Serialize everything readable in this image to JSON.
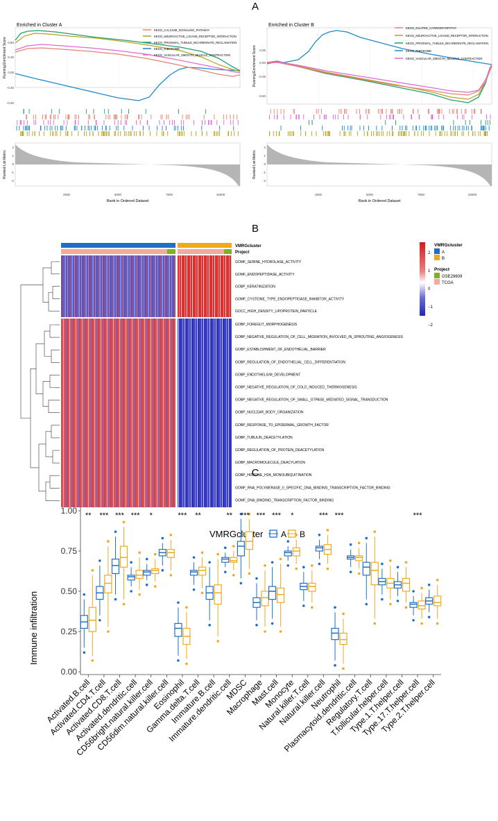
{
  "panel_labels": {
    "a": "A",
    "b": "B",
    "c": "C"
  },
  "colors": {
    "calcium": "#e8806f",
    "neuro": "#b5a11d",
    "proximal": "#1f9e6e",
    "ribosome": "#1e88c8",
    "vascular": "#e066d6",
    "dilated": "#e8806f",
    "heat_high": "#d7191c",
    "heat_low": "#2225b3",
    "cluster_a": "#1e6fc8",
    "cluster_b": "#f0a91a",
    "project_gse": "#7fb21e",
    "project_tcga": "#f4a8a0"
  },
  "gsea_a": {
    "title": "Enriched in Cluster A",
    "ylabel_top": "Running Enrichment Score",
    "ylabel_bottom": "Ranked List Metric",
    "xlabel": "Rank in Ordered Dataset",
    "yticks_top": [
      "0.50",
      "0.25",
      "0.00",
      "-0.25",
      "-0.50"
    ],
    "yticks_bottom": [
      "2",
      "1",
      "0",
      "-1",
      "-2"
    ],
    "xticks": [
      "2500",
      "5000",
      "7500",
      "10000"
    ],
    "legend": [
      "KEGG_CALCIUM_SIGNALING_PATHWAY",
      "KEGG_NEUROACTIVE_LIGAND_RECEPTOR_INTERACTION",
      "KEGG_PROXIMAL_TUBULE_BICARBONATE_RECLAMATION",
      "KEGG_RIBOSOME",
      "KEGG_VASCULAR_SMOOTH_MUSCLE_CONTRACTION"
    ]
  },
  "gsea_b": {
    "title": "Enriched in Cluster B",
    "ylabel_top": "Running Enrichment Score",
    "ylabel_bottom": "Ranked List Metric",
    "xlabel": "Rank in Ordered Dataset",
    "yticks_top": [
      "0.25",
      "0.00",
      "-0.25",
      "-0.50"
    ],
    "yticks_bottom": [
      "2",
      "1",
      "0",
      "-1",
      "-2"
    ],
    "xticks": [
      "2500",
      "5000",
      "7500",
      "10000"
    ],
    "legend": [
      "KEGG_DILATED_CARDIOMYOPATHY",
      "KEGG_NEUROACTIVE_LIGAND_RECEPTOR_INTERACTION",
      "KEGG_PROXIMAL_TUBULE_BICARBONATE_RECLAMATION",
      "KEGG_RIBOSOME",
      "KEGG_VASCULAR_SMOOTH_MUSCLE_CONTRACTION"
    ]
  },
  "heatmap": {
    "annotation_labels": [
      "VMRGcluster",
      "Project"
    ],
    "rows": [
      "GOMF_SERINE_HYDROLASE_ACTIVITY",
      "GOMF_ENDOPEPTIDASE_ACTIVITY",
      "GOBP_KERATINIZATION",
      "GOMF_CYSTEINE_TYPE_ENDOPEPTIDASE_INHIBITOR_ACTIVITY",
      "GOCC_HIGH_DENSITY_LIPOPROTEIN_PARTICLE",
      "GOBP_FOREGUT_MORPHOGENESIS",
      "GOBP_NEGATIVE_REGULATION_OF_CELL_MIGRATION_INVOLVED_IN_SPROUTING_ANGIOGENESIS",
      "GOBP_ESTABLISHMENT_OF_ENDOTHELIAL_BARRIER",
      "GOBP_REGULATION_OF_ENDOTHELIAL_CELL_DIFFERENTIATION",
      "GOBP_ENDOTHELIUM_DEVELOPMENT",
      "GOBP_NEGATIVE_REGULATION_OF_COLD_INDUCED_THERMOGENESIS",
      "GOBP_NEGATIVE_REGULATION_OF_SMALL_GTPASE_MEDIATED_SIGNAL_TRANSDUCTION",
      "GOBP_NUCLEAR_BODY_ORGANIZATION",
      "GOBP_RESPONSE_TO_EPIDERMAL_GROWTH_FACTOR",
      "GOBP_TUBULIN_DEACETYLATION",
      "GOBP_REGULATION_OF_PROTEIN_DEACETYLATION",
      "GOBP_MACROMOLECULE_DEACYLATION",
      "GOBP_HISTONE_H2A_MONOUBIQUITINATION",
      "GOMF_RNA_POLYMERASE_II_SPECIFIC_DNA_BINDING_TRANSCRIPTION_FACTOR_BINDING",
      "GOMF_DNA_BINDING_TRANSCRIPTION_FACTOR_BINDING"
    ],
    "legend_cluster": {
      "title": "VMRGcluster",
      "items": [
        "A",
        "B"
      ]
    },
    "legend_project": {
      "title": "Project",
      "items": [
        "GSE29609",
        "TCGA"
      ]
    },
    "scale_ticks": [
      "2",
      "1",
      "0",
      "−1",
      "−2"
    ]
  },
  "boxplot": {
    "legend_title": "VMRGcluster",
    "legend_items": [
      "A",
      "B"
    ],
    "ylabel": "Immune infiltration",
    "yticks": [
      "0.00",
      "0.25",
      "0.50",
      "0.75",
      "1.00"
    ]
  },
  "chart_data": {
    "type": "box",
    "title": "",
    "ylabel": "Immune infiltration",
    "ylim": [
      0,
      1
    ],
    "group_name": "VMRGcluster",
    "groups": [
      "A",
      "B"
    ],
    "categories": [
      "Activated.B.cell",
      "Activated.CD4.T.cell",
      "Activated.CD8.T.cell",
      "Activated.dendritic.cell",
      "CD56bright.natural.killer.cell",
      "CD56dim.natural.killer.cell",
      "Eosinophil",
      "Gamma.delta.T.cell",
      "Immature.B.cell",
      "Immature.dendritic.cell",
      "MDSC",
      "Macrophage",
      "Mast.cell",
      "Monocyte",
      "Natural.killer.T.cell",
      "Natural.killer.cell",
      "Neutrophil",
      "Plasmacytoid.dendritic.cell",
      "Regulatory.T.cell",
      "T.follicular.helper.cell",
      "Type.1.T.helper.cell",
      "Type.17.T.helper.cell",
      "Type.2.T.helper.cell"
    ],
    "significance": [
      "**",
      "***",
      "***",
      "***",
      "*",
      "",
      "***",
      "**",
      "",
      "**",
      "***",
      "***",
      "***",
      "*",
      "",
      "***",
      "***",
      "",
      "",
      "",
      "",
      "***",
      ""
    ],
    "series": [
      {
        "name": "A",
        "stats": [
          [
            0.15,
            0.27,
            0.31,
            0.35,
            0.45
          ],
          [
            0.35,
            0.45,
            0.49,
            0.53,
            0.66
          ],
          [
            0.48,
            0.61,
            0.66,
            0.7,
            0.84
          ],
          [
            0.53,
            0.57,
            0.59,
            0.6,
            0.65
          ],
          [
            0.57,
            0.6,
            0.62,
            0.63,
            0.67
          ],
          [
            0.66,
            0.72,
            0.74,
            0.76,
            0.8
          ],
          [
            0.1,
            0.22,
            0.27,
            0.3,
            0.4
          ],
          [
            0.54,
            0.6,
            0.62,
            0.63,
            0.68
          ],
          [
            0.32,
            0.45,
            0.49,
            0.53,
            0.65
          ],
          [
            0.65,
            0.68,
            0.7,
            0.71,
            0.74
          ],
          [
            0.58,
            0.72,
            0.78,
            0.81,
            0.95
          ],
          [
            0.32,
            0.4,
            0.43,
            0.46,
            0.55
          ],
          [
            0.33,
            0.45,
            0.5,
            0.53,
            0.65
          ],
          [
            0.69,
            0.72,
            0.74,
            0.75,
            0.78
          ],
          [
            0.44,
            0.51,
            0.53,
            0.55,
            0.62
          ],
          [
            0.7,
            0.75,
            0.77,
            0.78,
            0.82
          ],
          [
            0.07,
            0.2,
            0.24,
            0.27,
            0.37
          ],
          [
            0.65,
            0.7,
            0.71,
            0.72,
            0.76
          ],
          [
            0.45,
            0.6,
            0.65,
            0.68,
            0.8
          ],
          [
            0.48,
            0.54,
            0.56,
            0.58,
            0.64
          ],
          [
            0.47,
            0.52,
            0.54,
            0.56,
            0.62
          ],
          [
            0.35,
            0.4,
            0.42,
            0.43,
            0.47
          ],
          [
            0.37,
            0.42,
            0.44,
            0.46,
            0.51
          ]
        ]
      },
      {
        "name": "B",
        "stats": [
          [
            0.1,
            0.25,
            0.32,
            0.4,
            0.6
          ],
          [
            0.28,
            0.49,
            0.55,
            0.6,
            0.78
          ],
          [
            0.45,
            0.65,
            0.71,
            0.78,
            0.9
          ],
          [
            0.51,
            0.58,
            0.6,
            0.63,
            0.71
          ],
          [
            0.56,
            0.61,
            0.63,
            0.64,
            0.7
          ],
          [
            0.63,
            0.71,
            0.74,
            0.76,
            0.82
          ],
          [
            0.08,
            0.17,
            0.22,
            0.27,
            0.37
          ],
          [
            0.52,
            0.6,
            0.63,
            0.65,
            0.71
          ],
          [
            0.22,
            0.42,
            0.49,
            0.54,
            0.7
          ],
          [
            0.63,
            0.68,
            0.69,
            0.71,
            0.75
          ],
          [
            0.64,
            0.76,
            0.81,
            0.87,
            0.95
          ],
          [
            0.28,
            0.41,
            0.46,
            0.5,
            0.63
          ],
          [
            0.28,
            0.43,
            0.48,
            0.52,
            0.67
          ],
          [
            0.67,
            0.72,
            0.75,
            0.77,
            0.82
          ],
          [
            0.43,
            0.5,
            0.53,
            0.55,
            0.63
          ],
          [
            0.67,
            0.73,
            0.76,
            0.79,
            0.85
          ],
          [
            0.05,
            0.17,
            0.2,
            0.24,
            0.33
          ],
          [
            0.64,
            0.69,
            0.71,
            0.72,
            0.77
          ],
          [
            0.33,
            0.54,
            0.63,
            0.68,
            0.84
          ],
          [
            0.45,
            0.52,
            0.55,
            0.58,
            0.66
          ],
          [
            0.43,
            0.5,
            0.55,
            0.58,
            0.65
          ],
          [
            0.33,
            0.39,
            0.41,
            0.44,
            0.49
          ],
          [
            0.33,
            0.41,
            0.43,
            0.47,
            0.54
          ]
        ]
      }
    ]
  }
}
